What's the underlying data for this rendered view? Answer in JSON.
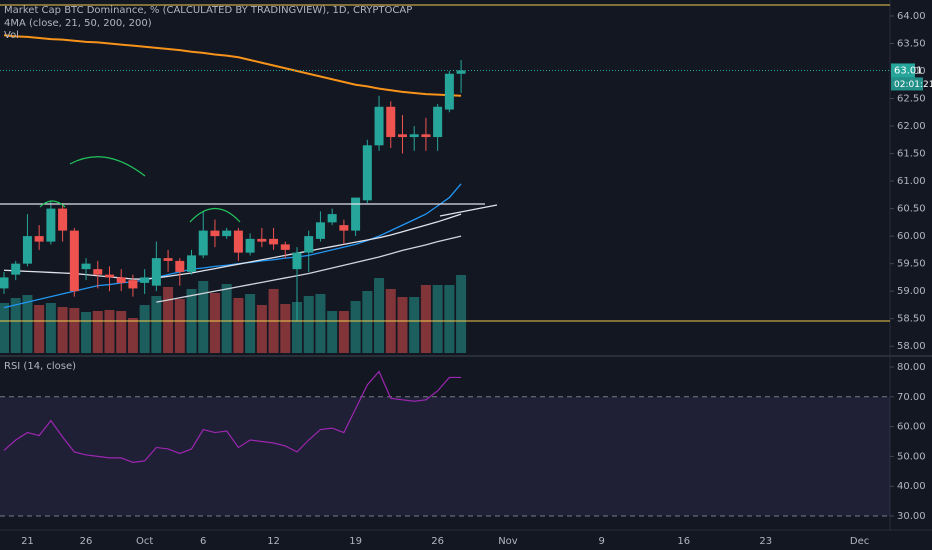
{
  "chart_data": {
    "type": "candlestick",
    "title": "Market Cap BTC Dominance, % (CALCULATED BY TRADINGVIEW), 1D, CRYPTOCAP",
    "ma_label": "4MA (close, 21, 50, 200, 200)",
    "volume_label": "Vol",
    "countdown": "02:01:21",
    "up_color": "#26a69a",
    "down_color": "#ef5350",
    "categories": [
      null,
      null,
      "21",
      null,
      null,
      null,
      null,
      "26",
      null,
      null,
      null,
      null,
      "Oct",
      null,
      null,
      null,
      null,
      "6",
      null,
      null,
      null,
      null,
      null,
      "12",
      null,
      null,
      null,
      null,
      null,
      null,
      "19",
      null,
      null,
      null,
      null,
      null,
      null,
      "26",
      null,
      null,
      null,
      null,
      null,
      "Nov",
      null,
      null,
      null,
      null,
      null,
      null,
      null,
      "9",
      null,
      null,
      null,
      null,
      null,
      null,
      "16",
      null,
      null,
      null,
      null,
      null,
      null,
      "23",
      null,
      null,
      null,
      null,
      null,
      null,
      null,
      "Dec",
      null,
      null,
      null,
      null,
      null,
      null
    ],
    "open": [
      59.05,
      59.3,
      59.5,
      60.0,
      59.9,
      60.5,
      60.1,
      59.4,
      59.4,
      59.3,
      59.25,
      59.2,
      59.15,
      59.1,
      59.6,
      59.55,
      59.35,
      59.65,
      60.1,
      60.0,
      60.1,
      59.7,
      59.95,
      59.95,
      59.85,
      59.4,
      59.7,
      59.95,
      60.25,
      60.2,
      60.1,
      60.65,
      61.65,
      62.35,
      61.85,
      61.8,
      61.85,
      61.8,
      62.3,
      62.95,
      null,
      null,
      null,
      null,
      null,
      null,
      null,
      null,
      null,
      null,
      null,
      null,
      null,
      null,
      null,
      null,
      null,
      null,
      null,
      null,
      null,
      null,
      null,
      null,
      null,
      null,
      null,
      null,
      null,
      null,
      null,
      null,
      null,
      null,
      null,
      null,
      null,
      null,
      null,
      null
    ],
    "high": [
      59.35,
      59.55,
      60.4,
      60.2,
      60.65,
      60.6,
      60.15,
      59.6,
      59.55,
      59.45,
      59.4,
      59.3,
      59.4,
      59.9,
      59.75,
      59.6,
      59.75,
      60.45,
      60.3,
      60.15,
      60.15,
      60.05,
      60.15,
      60.15,
      59.9,
      59.8,
      60.1,
      60.45,
      60.5,
      60.3,
      60.7,
      61.75,
      62.55,
      62.45,
      62.2,
      62.0,
      62.15,
      62.4,
      63.0,
      63.2,
      null,
      null,
      null,
      null,
      null,
      null,
      null,
      null,
      null,
      null,
      null,
      null,
      null,
      null,
      null,
      null,
      null,
      null,
      null,
      null,
      null,
      null,
      null,
      null,
      null,
      null,
      null,
      null,
      null,
      null,
      null,
      null,
      null,
      null,
      null,
      null,
      null,
      null,
      null,
      null
    ],
    "low": [
      58.95,
      59.2,
      59.45,
      59.75,
      59.85,
      59.9,
      58.9,
      59.2,
      59.05,
      59.0,
      59.0,
      58.9,
      58.95,
      59.0,
      59.35,
      59.1,
      59.3,
      59.6,
      59.8,
      59.95,
      59.55,
      59.65,
      59.8,
      59.75,
      59.6,
      58.45,
      59.35,
      59.9,
      60.2,
      59.85,
      60.0,
      60.6,
      61.55,
      61.6,
      61.5,
      61.55,
      61.55,
      61.55,
      62.25,
      62.6,
      null,
      null,
      null,
      null,
      null,
      null,
      null,
      null,
      null,
      null,
      null,
      null,
      null,
      null,
      null,
      null,
      null,
      null,
      null,
      null,
      null,
      null,
      null,
      null,
      null,
      null,
      null,
      null,
      null,
      null,
      null,
      null,
      null,
      null,
      null,
      null,
      null,
      null,
      null,
      null
    ],
    "close": [
      59.25,
      59.5,
      60.0,
      59.9,
      60.5,
      60.1,
      59.0,
      59.5,
      59.3,
      59.25,
      59.15,
      59.05,
      59.25,
      59.6,
      59.55,
      59.35,
      59.65,
      60.1,
      60.0,
      60.1,
      59.7,
      59.95,
      59.9,
      59.85,
      59.75,
      59.7,
      60.0,
      60.25,
      60.4,
      60.1,
      60.7,
      61.65,
      62.35,
      61.8,
      61.8,
      61.85,
      61.8,
      62.35,
      62.95,
      63.01,
      null,
      null,
      null,
      null,
      null,
      null,
      null,
      null,
      null,
      null,
      null,
      null,
      null,
      null,
      null,
      null,
      null,
      null,
      null,
      null,
      null,
      null,
      null,
      null,
      null,
      null,
      null,
      null,
      null,
      null,
      null,
      null,
      null,
      null,
      null,
      null,
      null,
      null,
      null,
      null
    ],
    "volume": [
      50,
      55,
      58,
      48,
      50,
      46,
      45,
      41,
      42,
      43,
      42,
      35,
      48,
      57,
      66,
      54,
      64,
      72,
      60,
      69,
      55,
      59,
      48,
      64,
      49,
      51,
      57,
      59,
      42,
      42,
      52,
      62,
      75,
      64,
      56,
      56,
      68,
      68,
      68,
      78,
      null,
      null,
      null,
      null,
      null,
      null,
      null,
      null,
      null,
      null,
      null,
      null,
      null,
      null,
      null,
      null,
      null,
      null,
      null,
      null,
      null,
      null,
      null,
      null,
      null,
      null,
      null,
      null,
      null,
      null,
      null,
      null,
      null,
      null,
      null,
      null,
      null,
      null,
      null,
      null
    ],
    "series": [
      {
        "color": "#2196f3",
        "values": [
          58.7,
          58.75,
          58.8,
          58.85,
          58.9,
          58.95,
          59.0,
          59.05,
          59.1,
          59.12,
          59.15,
          59.17,
          59.2,
          59.25,
          59.3,
          59.35,
          59.4,
          59.42,
          59.45,
          59.47,
          59.5,
          59.52,
          59.55,
          59.57,
          59.6,
          59.62,
          59.65,
          59.7,
          59.75,
          59.8,
          59.85,
          59.92,
          60.0,
          60.1,
          60.2,
          60.3,
          60.4,
          60.55,
          60.7,
          60.95,
          null,
          null,
          null,
          null,
          null,
          null,
          null,
          null,
          null,
          null,
          null,
          null,
          null,
          null,
          null,
          null,
          null,
          null,
          null,
          null,
          null,
          null,
          null,
          null,
          null,
          null,
          null,
          null,
          null,
          null,
          null,
          null,
          null,
          null,
          null,
          null,
          null,
          null,
          null,
          null
        ]
      },
      {
        "color": "#e0e3eb",
        "values": [
          59.38,
          59.37,
          59.36,
          59.35,
          59.34,
          59.33,
          59.32,
          59.3,
          59.28,
          59.26,
          59.24,
          59.22,
          59.22,
          59.24,
          59.27,
          59.3,
          59.33,
          59.37,
          59.41,
          59.45,
          59.49,
          59.53,
          59.57,
          59.61,
          59.65,
          59.69,
          59.73,
          59.77,
          59.81,
          59.85,
          59.89,
          59.93,
          59.97,
          60.02,
          60.08,
          60.14,
          60.2,
          60.26,
          60.33,
          60.4,
          null,
          null,
          null,
          null,
          null,
          null,
          null,
          null,
          null,
          null,
          null,
          null,
          null,
          null,
          null,
          null,
          null,
          null,
          null,
          null,
          null,
          null,
          null,
          null,
          null,
          null,
          null,
          null,
          null,
          null,
          null,
          null,
          null,
          null,
          null,
          null,
          null,
          null,
          null,
          null
        ]
      },
      {
        "color": "#d1d4dc",
        "values": [
          null,
          null,
          null,
          null,
          null,
          null,
          null,
          null,
          null,
          null,
          null,
          null,
          null,
          58.8,
          58.84,
          58.88,
          58.92,
          58.96,
          59.0,
          59.04,
          59.08,
          59.12,
          59.16,
          59.2,
          59.24,
          59.28,
          59.32,
          59.37,
          59.42,
          59.47,
          59.52,
          59.57,
          59.62,
          59.68,
          59.74,
          59.79,
          59.84,
          59.9,
          59.95,
          60.0,
          null,
          null,
          null,
          null,
          null,
          null,
          null,
          null,
          null,
          null,
          null,
          null,
          null,
          null,
          null,
          null,
          null,
          null,
          null,
          null,
          null,
          null,
          null,
          null,
          null,
          null,
          null,
          null,
          null,
          null,
          null,
          null,
          null,
          null,
          null,
          null,
          null,
          null,
          null,
          null
        ]
      },
      {
        "color": "#f7931a",
        "values": [
          63.65,
          63.63,
          63.62,
          63.6,
          63.58,
          63.57,
          63.55,
          63.53,
          63.52,
          63.5,
          63.48,
          63.46,
          63.44,
          63.42,
          63.4,
          63.38,
          63.35,
          63.33,
          63.3,
          63.28,
          63.25,
          63.2,
          63.15,
          63.1,
          63.05,
          63.0,
          62.95,
          62.9,
          62.85,
          62.8,
          62.75,
          62.72,
          62.68,
          62.65,
          62.62,
          62.6,
          62.58,
          62.57,
          62.56,
          62.55,
          null,
          null,
          null,
          null,
          null,
          null,
          null,
          null,
          null,
          null,
          null,
          null,
          null,
          null,
          null,
          null,
          null,
          null,
          null,
          null,
          null,
          null,
          null,
          null,
          null,
          null,
          null,
          null,
          null,
          null,
          null,
          null,
          null,
          null,
          null,
          null,
          null,
          null,
          null,
          null
        ]
      }
    ],
    "ylim": [
      57.84,
      64.29
    ],
    "yticks": [
      {
        "value": 64,
        "label": "64.00"
      },
      {
        "value": 63.5,
        "label": "63.50"
      },
      {
        "value": 63,
        "label": "63.00"
      },
      {
        "value": 62.5,
        "label": "62.50"
      },
      {
        "value": 62,
        "label": "62.00"
      },
      {
        "value": 61.5,
        "label": "61.50"
      },
      {
        "value": 61,
        "label": "61.00"
      },
      {
        "value": 60.5,
        "label": "60.50"
      },
      {
        "value": 60,
        "label": "60.00"
      },
      {
        "value": 59.5,
        "label": "59.50"
      },
      {
        "value": 59,
        "label": "59.00"
      },
      {
        "value": 58.5,
        "label": "58.50"
      },
      {
        "value": 58,
        "label": "58.00"
      }
    ],
    "rsi": {
      "label": "RSI (14, close)",
      "color": "#9c27b0",
      "values": [
        52,
        55.5,
        58,
        57,
        62,
        56.5,
        51.5,
        50.5,
        50,
        49.5,
        49.5,
        48,
        48.5,
        53,
        52.5,
        51,
        52.5,
        59,
        58,
        58.5,
        53,
        55.5,
        55,
        54.5,
        53.5,
        51.5,
        55.5,
        59,
        59.5,
        58,
        66,
        74,
        78.5,
        69.5,
        69,
        68.5,
        69,
        72,
        76.5,
        76.5,
        null,
        null,
        null,
        null,
        null,
        null,
        null,
        null,
        null,
        null,
        null,
        null,
        null,
        null,
        null,
        null,
        null,
        null,
        null,
        null,
        null,
        null,
        null,
        null,
        null,
        null,
        null,
        null,
        null,
        null,
        null,
        null,
        null,
        null,
        null,
        null,
        null,
        null,
        null,
        null
      ],
      "ylim": [
        25.3,
        83.36
      ],
      "yticks": [
        {
          "value": 80,
          "label": "80.00"
        },
        {
          "value": 70,
          "label": "70.00"
        },
        {
          "value": 60,
          "label": "60.00"
        },
        {
          "value": 50,
          "label": "50.00"
        },
        {
          "value": 40,
          "label": "40.00"
        },
        {
          "value": 30,
          "label": "30.00"
        }
      ],
      "bands": [
        70,
        30
      ]
    }
  }
}
